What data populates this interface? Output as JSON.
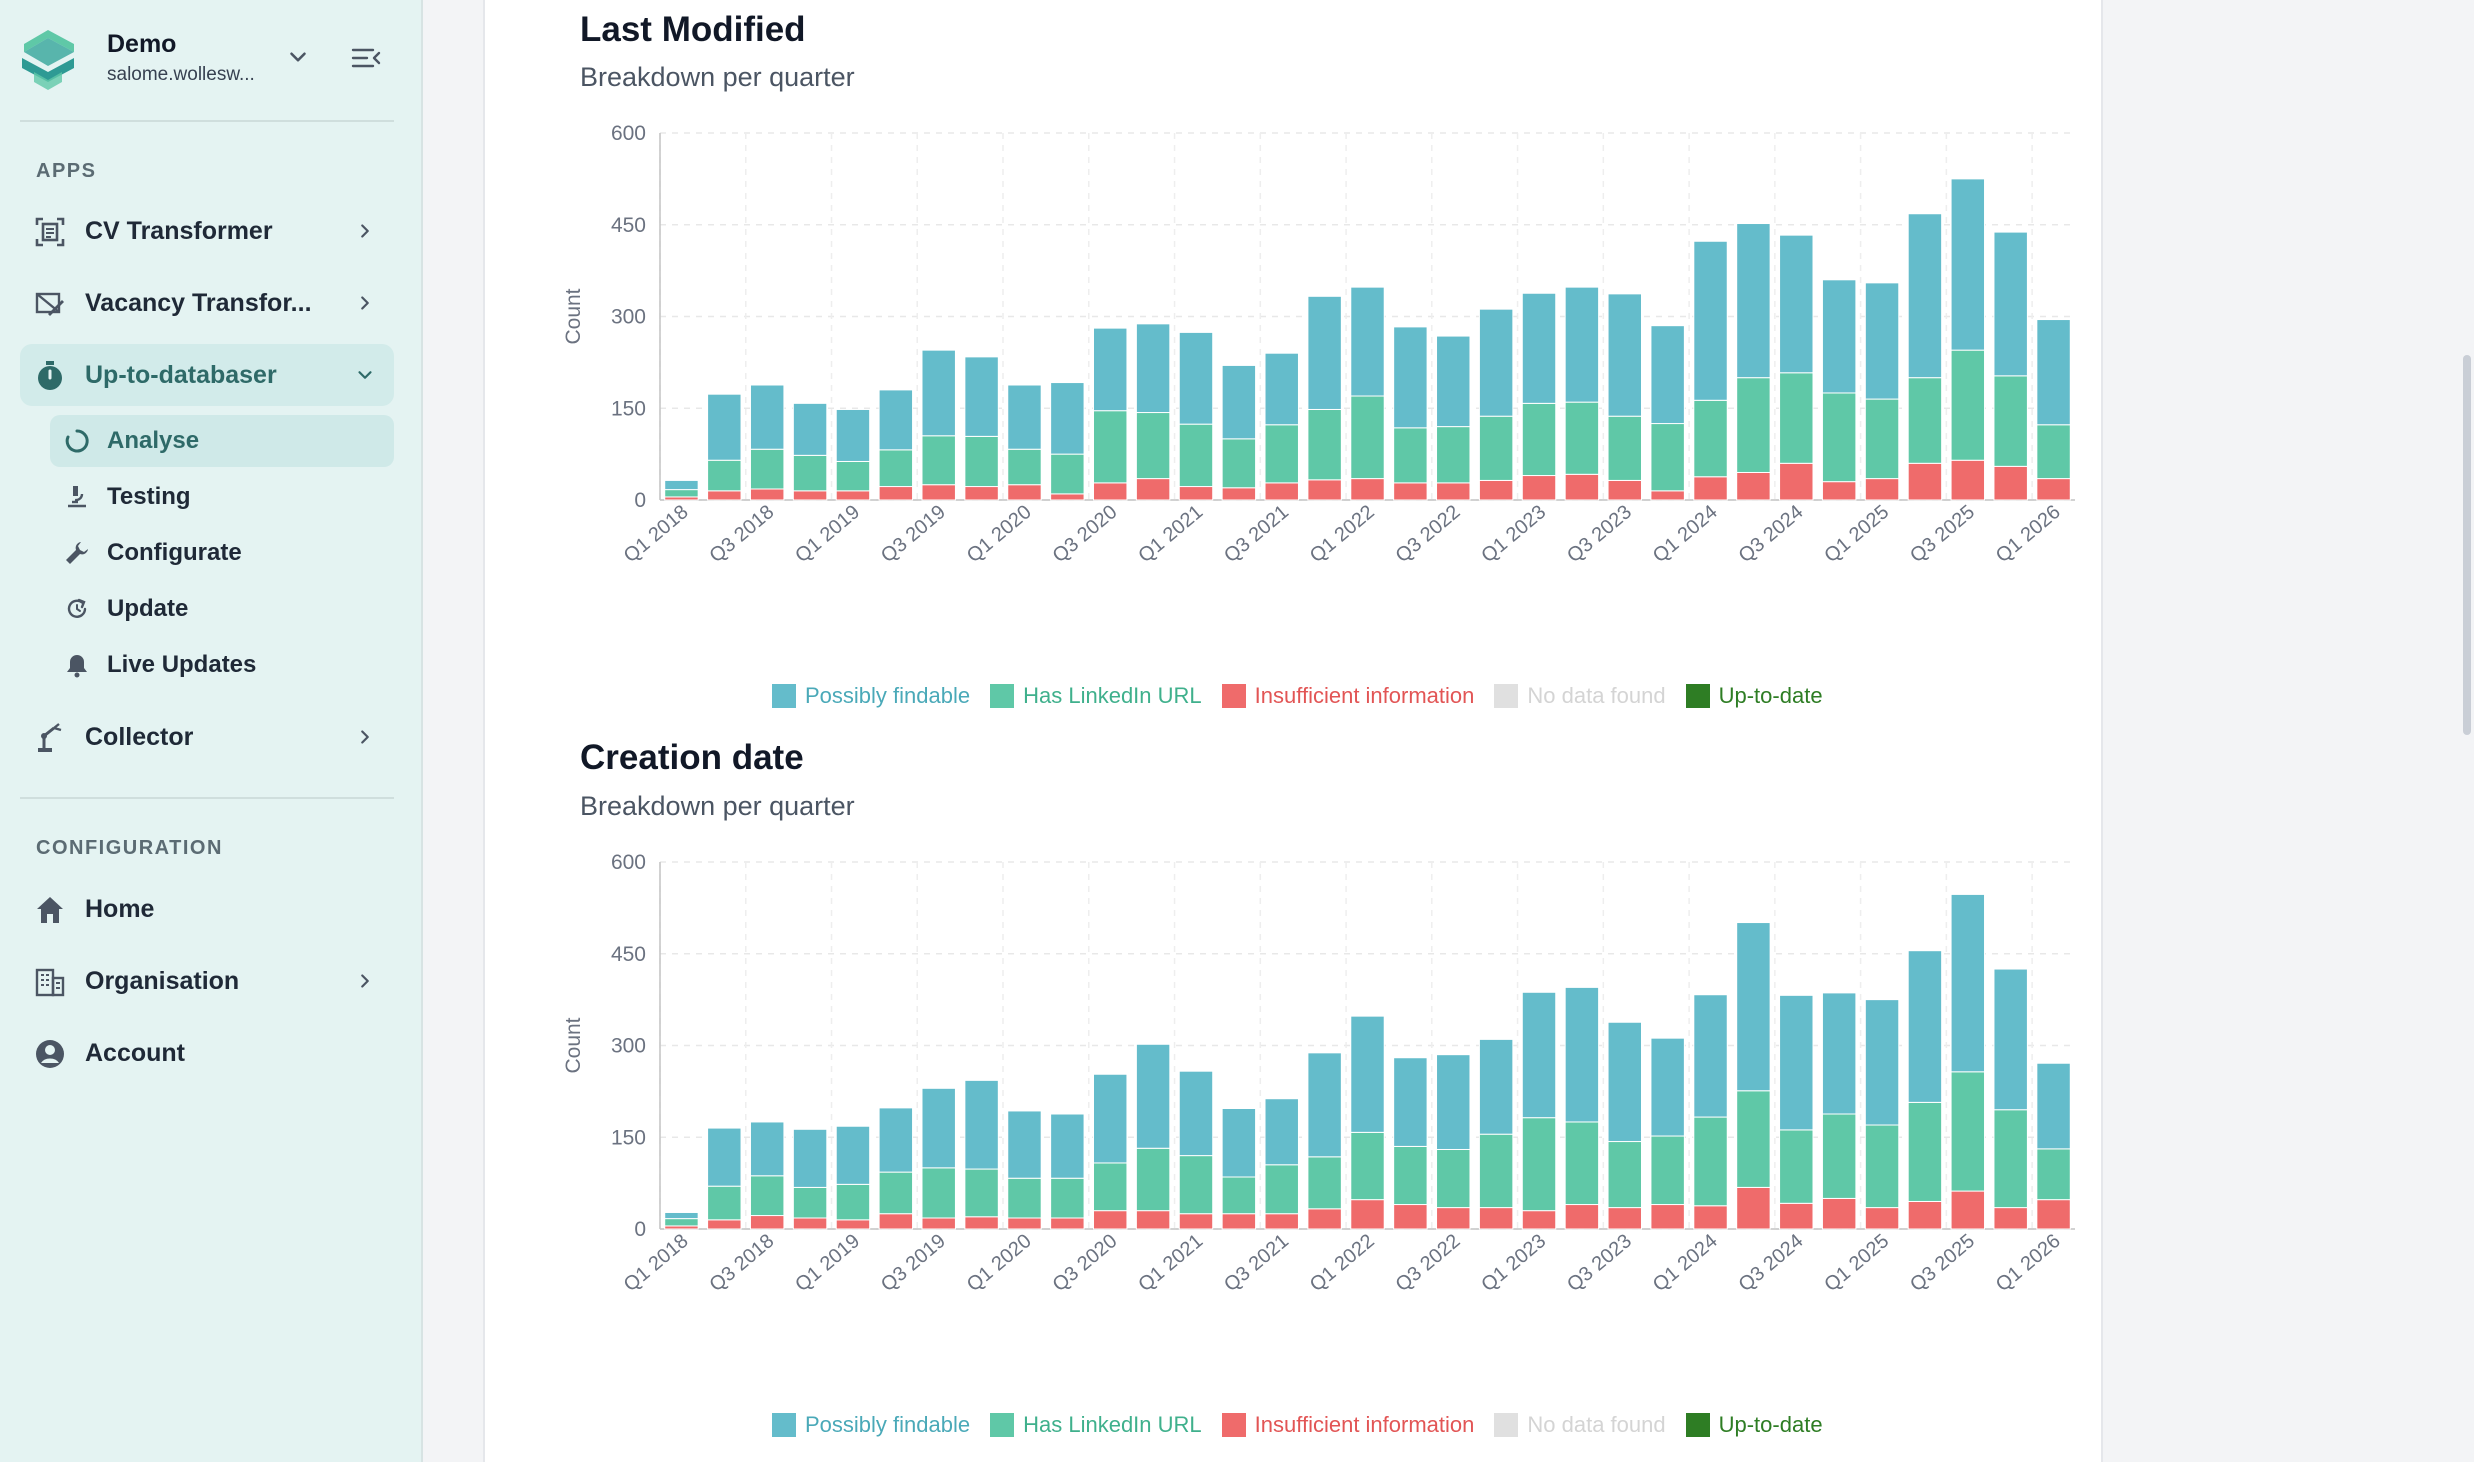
{
  "sidebar": {
    "org_name": "Demo",
    "org_user": "salome.wollesw...",
    "apps_heading": "APPS",
    "config_heading": "CONFIGURATION",
    "apps": [
      {
        "label": "CV Transformer",
        "icon": "cv-icon"
      },
      {
        "label": "Vacancy Transfor...",
        "icon": "vacancy-icon"
      },
      {
        "label": "Up-to-databaser",
        "icon": "stopwatch-icon"
      },
      {
        "label": "Collector",
        "icon": "robot-arm-icon"
      }
    ],
    "subitems": [
      {
        "label": "Analyse",
        "icon": "loading-circle-icon"
      },
      {
        "label": "Testing",
        "icon": "microscope-icon"
      },
      {
        "label": "Configurate",
        "icon": "wrench-icon"
      },
      {
        "label": "Update",
        "icon": "refresh-icon"
      },
      {
        "label": "Live Updates",
        "icon": "bell-icon"
      }
    ],
    "config": [
      {
        "label": "Home",
        "icon": "home-icon"
      },
      {
        "label": "Organisation",
        "icon": "building-icon"
      },
      {
        "label": "Account",
        "icon": "account-icon"
      }
    ]
  },
  "charts": [
    {
      "title": "Last Modified",
      "subtitle": "Breakdown per quarter"
    },
    {
      "title": "Creation date",
      "subtitle": "Breakdown per quarter"
    }
  ],
  "colors": {
    "possibly_findable": "#64bccb",
    "has_linkedin": "#5fc8a7",
    "insufficient": "#ef6b6b",
    "no_data": "#e0e0e0",
    "up_to_date": "#2e7d24"
  },
  "chart_data": [
    {
      "type": "bar",
      "stacked": true,
      "title": "Last Modified",
      "subtitle": "Breakdown per quarter",
      "ylabel": "Count",
      "xlabel": "",
      "ylim": [
        0,
        600
      ],
      "yticks": [
        "0",
        "150",
        "300",
        "450",
        "600"
      ],
      "tick_labels": [
        "Q1 2018",
        "Q3 2018",
        "Q1 2019",
        "Q3 2019",
        "Q1 2020",
        "Q3 2020",
        "Q1 2021",
        "Q3 2021",
        "Q1 2022",
        "Q3 2022",
        "Q1 2023",
        "Q3 2023",
        "Q1 2024",
        "Q3 2024",
        "Q1 2025",
        "Q3 2025",
        "Q1 2026"
      ],
      "categories": [
        "Q1 2018",
        "Q2 2018",
        "Q3 2018",
        "Q4 2018",
        "Q1 2019",
        "Q2 2019",
        "Q3 2019",
        "Q4 2019",
        "Q1 2020",
        "Q2 2020",
        "Q3 2020",
        "Q4 2020",
        "Q1 2021",
        "Q2 2021",
        "Q3 2021",
        "Q4 2021",
        "Q1 2022",
        "Q2 2022",
        "Q3 2022",
        "Q4 2022",
        "Q1 2023",
        "Q2 2023",
        "Q3 2023",
        "Q4 2023",
        "Q1 2024",
        "Q2 2024",
        "Q3 2024",
        "Q4 2024",
        "Q1 2025",
        "Q2 2025",
        "Q3 2025",
        "Q4 2025",
        "Q1 2026"
      ],
      "legend": [
        "Possibly findable",
        "Has LinkedIn URL",
        "Insufficient information",
        "No data found",
        "Up-to-date"
      ],
      "series": [
        {
          "name": "Insufficient information",
          "values": [
            5,
            15,
            18,
            15,
            15,
            22,
            25,
            22,
            25,
            10,
            28,
            35,
            22,
            20,
            28,
            33,
            35,
            28,
            28,
            32,
            40,
            42,
            32,
            15,
            38,
            45,
            60,
            30,
            35,
            60,
            65,
            55,
            35
          ]
        },
        {
          "name": "Has LinkedIn URL",
          "values": [
            12,
            50,
            65,
            58,
            48,
            60,
            80,
            82,
            58,
            65,
            118,
            108,
            102,
            80,
            95,
            115,
            135,
            90,
            92,
            105,
            118,
            118,
            105,
            110,
            125,
            155,
            148,
            145,
            130,
            140,
            180,
            148,
            88
          ]
        },
        {
          "name": "Possibly findable",
          "values": [
            15,
            108,
            105,
            85,
            85,
            98,
            140,
            130,
            105,
            117,
            135,
            145,
            150,
            120,
            117,
            185,
            178,
            165,
            148,
            175,
            180,
            188,
            200,
            160,
            260,
            252,
            225,
            185,
            190,
            268,
            280,
            235,
            172
          ]
        },
        {
          "name": "No data found",
          "values": [
            0,
            0,
            0,
            0,
            0,
            0,
            0,
            0,
            0,
            0,
            0,
            0,
            0,
            0,
            0,
            0,
            0,
            0,
            0,
            0,
            0,
            0,
            0,
            0,
            0,
            0,
            0,
            0,
            0,
            0,
            0,
            0,
            0
          ]
        },
        {
          "name": "Up-to-date",
          "values": [
            0,
            0,
            0,
            0,
            0,
            0,
            0,
            0,
            0,
            0,
            0,
            0,
            0,
            0,
            0,
            0,
            0,
            0,
            0,
            0,
            0,
            0,
            0,
            0,
            0,
            0,
            0,
            0,
            0,
            0,
            0,
            0,
            0
          ]
        }
      ]
    },
    {
      "type": "bar",
      "stacked": true,
      "title": "Creation date",
      "subtitle": "Breakdown per quarter",
      "ylabel": "Count",
      "xlabel": "",
      "ylim": [
        0,
        600
      ],
      "yticks": [
        "0",
        "150",
        "300",
        "450",
        "600"
      ],
      "tick_labels": [
        "Q1 2018",
        "Q3 2018",
        "Q1 2019",
        "Q3 2019",
        "Q1 2020",
        "Q3 2020",
        "Q1 2021",
        "Q3 2021",
        "Q1 2022",
        "Q3 2022",
        "Q1 2023",
        "Q3 2023",
        "Q1 2024",
        "Q3 2024",
        "Q1 2025",
        "Q3 2025",
        "Q1 2026"
      ],
      "categories": [
        "Q1 2018",
        "Q2 2018",
        "Q3 2018",
        "Q4 2018",
        "Q1 2019",
        "Q2 2019",
        "Q3 2019",
        "Q4 2019",
        "Q1 2020",
        "Q2 2020",
        "Q3 2020",
        "Q4 2020",
        "Q1 2021",
        "Q2 2021",
        "Q3 2021",
        "Q4 2021",
        "Q1 2022",
        "Q2 2022",
        "Q3 2022",
        "Q4 2022",
        "Q1 2023",
        "Q2 2023",
        "Q3 2023",
        "Q4 2023",
        "Q1 2024",
        "Q2 2024",
        "Q3 2024",
        "Q4 2024",
        "Q1 2025",
        "Q2 2025",
        "Q3 2025",
        "Q4 2025",
        "Q1 2026"
      ],
      "legend": [
        "Possibly findable",
        "Has LinkedIn URL",
        "Insufficient information",
        "No data found",
        "Up-to-date"
      ],
      "series": [
        {
          "name": "Insufficient information",
          "values": [
            5,
            15,
            22,
            18,
            15,
            25,
            18,
            20,
            18,
            18,
            30,
            30,
            25,
            25,
            25,
            33,
            48,
            40,
            35,
            35,
            30,
            40,
            35,
            40,
            38,
            68,
            42,
            50,
            35,
            45,
            62,
            35,
            48
          ]
        },
        {
          "name": "Has LinkedIn URL",
          "values": [
            12,
            55,
            65,
            50,
            58,
            68,
            82,
            78,
            65,
            65,
            78,
            102,
            95,
            60,
            80,
            85,
            110,
            95,
            95,
            120,
            152,
            135,
            108,
            112,
            145,
            158,
            120,
            138,
            135,
            162,
            195,
            160,
            83
          ]
        },
        {
          "name": "Possibly findable",
          "values": [
            10,
            95,
            88,
            95,
            95,
            105,
            130,
            145,
            110,
            105,
            145,
            170,
            138,
            112,
            108,
            170,
            190,
            145,
            155,
            155,
            205,
            220,
            195,
            160,
            200,
            275,
            220,
            198,
            205,
            248,
            290,
            230,
            140
          ]
        },
        {
          "name": "No data found",
          "values": [
            0,
            0,
            0,
            0,
            0,
            0,
            0,
            0,
            0,
            0,
            0,
            0,
            0,
            0,
            0,
            0,
            0,
            0,
            0,
            0,
            0,
            0,
            0,
            0,
            0,
            0,
            0,
            0,
            0,
            0,
            0,
            0,
            0
          ]
        },
        {
          "name": "Up-to-date",
          "values": [
            0,
            0,
            0,
            0,
            0,
            0,
            0,
            0,
            0,
            0,
            0,
            0,
            0,
            0,
            0,
            0,
            0,
            0,
            0,
            0,
            0,
            0,
            0,
            0,
            0,
            0,
            0,
            0,
            0,
            0,
            0,
            0,
            0
          ]
        }
      ]
    }
  ]
}
